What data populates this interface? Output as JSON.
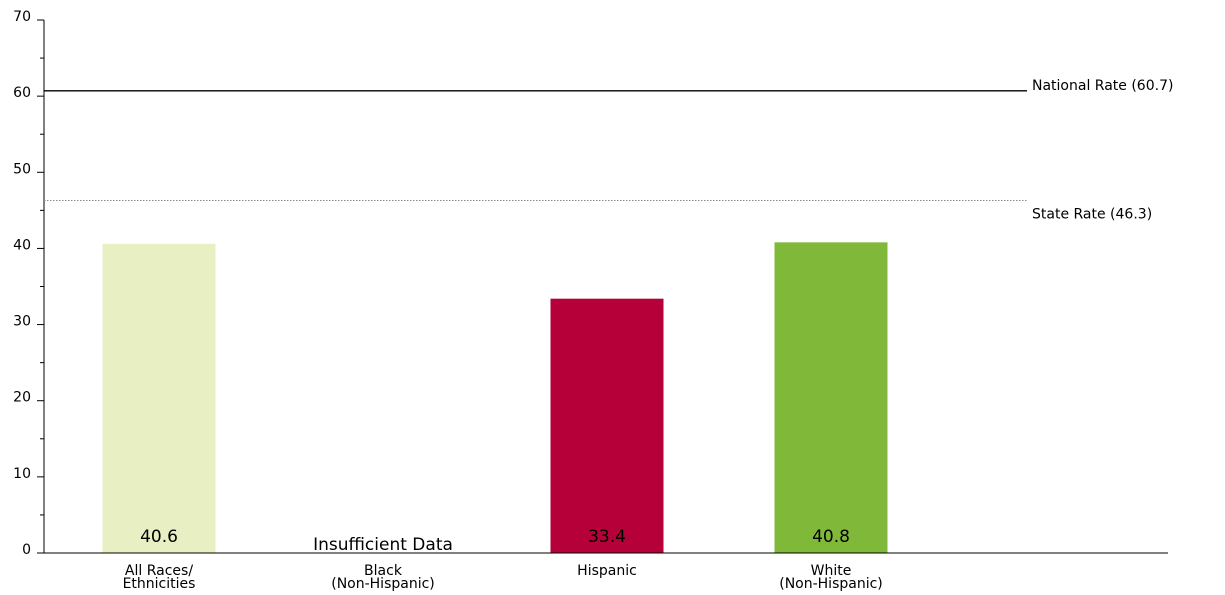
{
  "chart_data": {
    "type": "bar",
    "ylim": [
      0,
      70
    ],
    "yticks": [
      0,
      10,
      20,
      30,
      40,
      50,
      60,
      70
    ],
    "categories": [
      {
        "lines": [
          "All Races/",
          "Ethnicities"
        ],
        "value": 40.6,
        "label": "40.6",
        "color": "#e8efc3"
      },
      {
        "lines": [
          "Black",
          "(Non-Hispanic)"
        ],
        "value": null,
        "label": "Insufficient Data",
        "color": "#ffffff"
      },
      {
        "lines": [
          "Hispanic"
        ],
        "value": 33.4,
        "label": "33.4",
        "color": "#b5003a"
      },
      {
        "lines": [
          "White",
          "(Non-Hispanic)"
        ],
        "value": 40.8,
        "label": "40.8",
        "color": "#80b83a"
      }
    ],
    "reference_lines": [
      {
        "label": "National Rate (60.7)",
        "value": 60.7,
        "style": "solid",
        "color": "#000000"
      },
      {
        "label": "State Rate (46.3)",
        "value": 46.3,
        "style": "dotted",
        "color": "#888888"
      }
    ]
  }
}
